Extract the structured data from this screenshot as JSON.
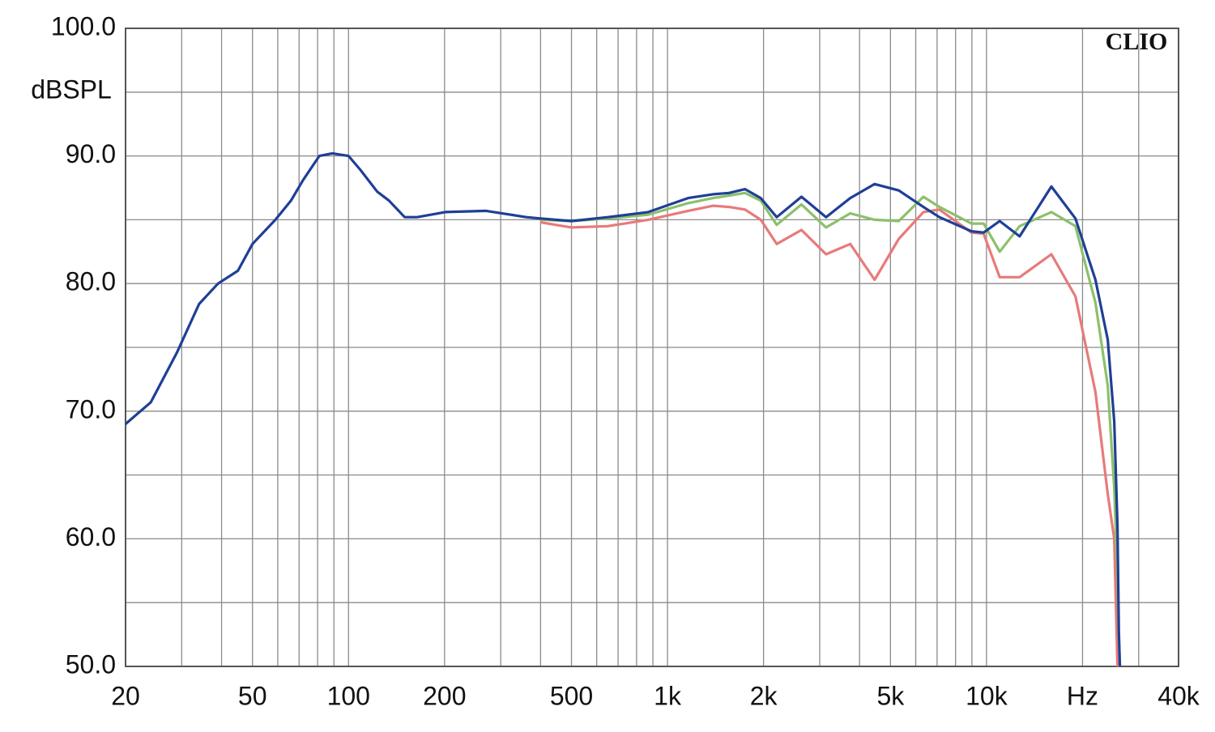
{
  "chart_data": {
    "type": "line",
    "y_label": "dBSPL",
    "annotation": "CLIO",
    "log_x": true,
    "grid": true,
    "xlim": [
      20,
      40000
    ],
    "xticks": [
      20,
      50,
      100,
      200,
      500,
      {
        "value": 1000,
        "label": "1k"
      },
      {
        "value": 2000,
        "label": "2k"
      },
      {
        "value": 5000,
        "label": "5k"
      },
      {
        "value": 10000,
        "label": "10k"
      },
      {
        "value": 20000,
        "label": "Hz"
      },
      {
        "value": 40000,
        "label": "40k"
      }
    ],
    "xminorticks": [
      30,
      40,
      60,
      70,
      80,
      90,
      300,
      400,
      600,
      700,
      800,
      900,
      3000,
      4000,
      6000,
      7000,
      8000,
      9000,
      30000
    ],
    "ylim": [
      50,
      100
    ],
    "yticks": [
      {
        "value": 50,
        "label": "50.0"
      },
      {
        "value": 60,
        "label": "60.0"
      },
      {
        "value": 70,
        "label": "70.0"
      },
      {
        "value": 80,
        "label": "80.0"
      },
      {
        "value": 90,
        "label": "90.0"
      },
      {
        "value": 100,
        "label": "100.0"
      }
    ],
    "yminorticks": [
      55,
      65,
      75,
      85,
      95
    ],
    "x": [
      20,
      24,
      29,
      34,
      39,
      45,
      50,
      59,
      66,
      72,
      81,
      89,
      100,
      109,
      123,
      134,
      150,
      164,
      201,
      270,
      361,
      400,
      500,
      650,
      870,
      1160,
      1390,
      1560,
      1750,
      1960,
      2200,
      2630,
      3140,
      3740,
      4460,
      5310,
      6340,
      7120,
      8970,
      9800,
      11000,
      12700,
      15970,
      19000,
      21960,
      24000,
      25150,
      25740,
      26000,
      26200
    ],
    "series": [
      {
        "color": "#e87a7a",
        "values": [
          null,
          null,
          null,
          null,
          null,
          null,
          null,
          null,
          null,
          null,
          null,
          null,
          null,
          null,
          null,
          null,
          null,
          null,
          null,
          null,
          null,
          84.8,
          84.4,
          84.5,
          85.0,
          85.7,
          86.1,
          86.0,
          85.8,
          85.0,
          83.1,
          84.2,
          82.3,
          83.1,
          80.3,
          83.5,
          85.6,
          85.8,
          84.0,
          83.9,
          80.5,
          80.5,
          82.3,
          79.0,
          71.5,
          63.5,
          60.0,
          50.0,
          null,
          null
        ]
      },
      {
        "color": "#8cc06a",
        "values": [
          null,
          null,
          null,
          null,
          null,
          null,
          null,
          null,
          null,
          null,
          null,
          null,
          null,
          null,
          null,
          null,
          null,
          null,
          null,
          null,
          null,
          85.0,
          84.9,
          85.1,
          85.4,
          86.3,
          86.7,
          86.9,
          87.1,
          86.5,
          84.6,
          86.2,
          84.4,
          85.5,
          85.0,
          84.9,
          86.8,
          86.0,
          84.7,
          84.7,
          82.5,
          84.5,
          85.6,
          84.5,
          78.5,
          72.0,
          64.0,
          57.0,
          52.0,
          50.0
        ]
      },
      {
        "color": "#1f3f96",
        "values": [
          69.0,
          70.7,
          74.6,
          78.4,
          80.0,
          81.0,
          83.1,
          85.0,
          86.5,
          88.1,
          90.0,
          90.2,
          90.0,
          88.9,
          87.2,
          86.5,
          85.2,
          85.2,
          85.6,
          85.7,
          85.2,
          85.1,
          84.9,
          85.2,
          85.6,
          86.7,
          87.0,
          87.1,
          87.4,
          86.7,
          85.2,
          86.8,
          85.2,
          86.7,
          87.8,
          87.3,
          86.0,
          85.2,
          84.1,
          84.0,
          84.9,
          83.7,
          87.6,
          85.1,
          80.3,
          75.6,
          69.2,
          61.0,
          52.7,
          50.0
        ]
      }
    ]
  }
}
